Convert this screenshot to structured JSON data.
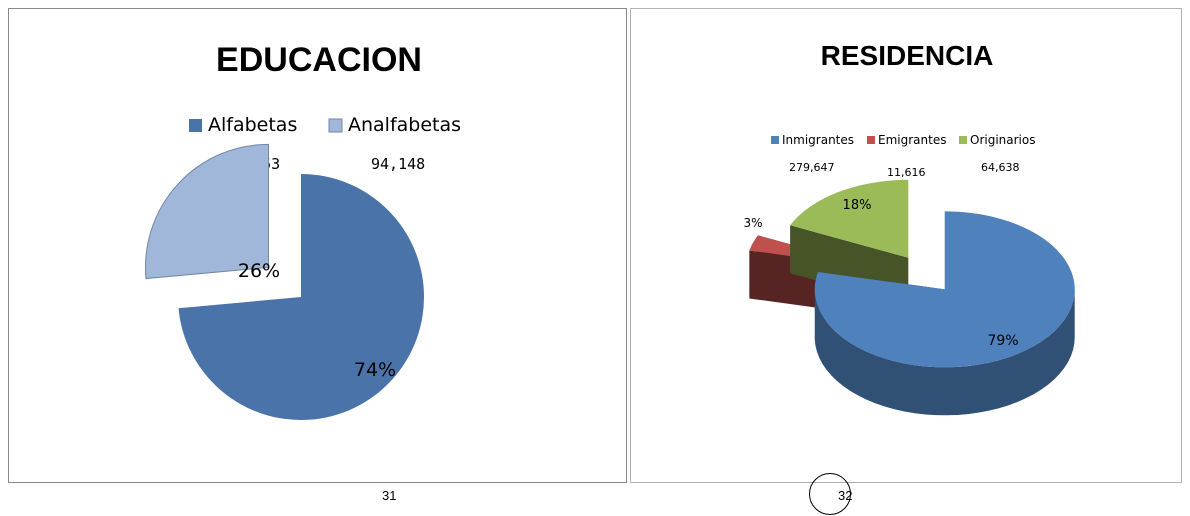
{
  "chart_data": [
    {
      "type": "pie",
      "title": "EDUCACION",
      "categories": [
        "Alfabetas",
        "Analfabetas"
      ],
      "values": [
        261753,
        94148
      ],
      "value_labels": [
        "261,753",
        "94,148"
      ],
      "percent_labels": [
        "74%",
        "26%"
      ],
      "colors": [
        "#4a73a9",
        "#a1b7d9"
      ],
      "exploded": "Analfabetas",
      "legend": "top"
    },
    {
      "type": "pie",
      "title": "RESIDENCIA",
      "style": "3d",
      "categories": [
        "Inmigrantes",
        "Emigrantes",
        "Originarios"
      ],
      "values": [
        279647,
        11616,
        64638
      ],
      "value_labels": [
        "279,647",
        "11,616",
        "64,638"
      ],
      "percent_labels": [
        "79%",
        "3%",
        "18%"
      ],
      "colors": [
        "#4f81bd",
        "#c0504d",
        "#9bbb59"
      ],
      "exploded": "all",
      "legend": "top"
    }
  ],
  "page_numbers": [
    "31",
    "32"
  ]
}
